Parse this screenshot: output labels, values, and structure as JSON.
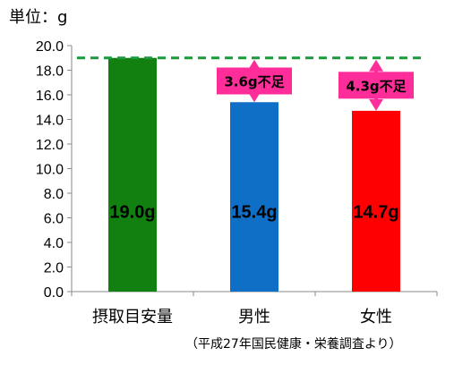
{
  "unit_label": "単位：g",
  "source_note": "（平成27年国民健康・栄養調査より）",
  "chart_data": {
    "type": "bar",
    "categories": [
      "摂取目安量",
      "男性",
      "女性"
    ],
    "values": [
      19.0,
      15.4,
      14.7
    ],
    "value_labels": [
      "19.0g",
      "15.4g",
      "14.7g"
    ],
    "bar_colors": [
      "#118011",
      "#0f6fc6",
      "#ff0000"
    ],
    "ylim": [
      0,
      20
    ],
    "yticks": [
      "0.0",
      "2.0",
      "4.0",
      "6.0",
      "8.0",
      "10.0",
      "12.0",
      "14.0",
      "16.0",
      "18.0",
      "20.0"
    ],
    "reference_line": {
      "value": 19.0,
      "color": "#1a9a3c",
      "style": "dashed"
    },
    "shortfalls": [
      {
        "category": "男性",
        "value": 3.6,
        "label": "3.6g不足"
      },
      {
        "category": "女性",
        "value": 4.3,
        "label": "4.3g不足"
      }
    ],
    "annotation_color": "#ff2d9a",
    "grid": false
  }
}
